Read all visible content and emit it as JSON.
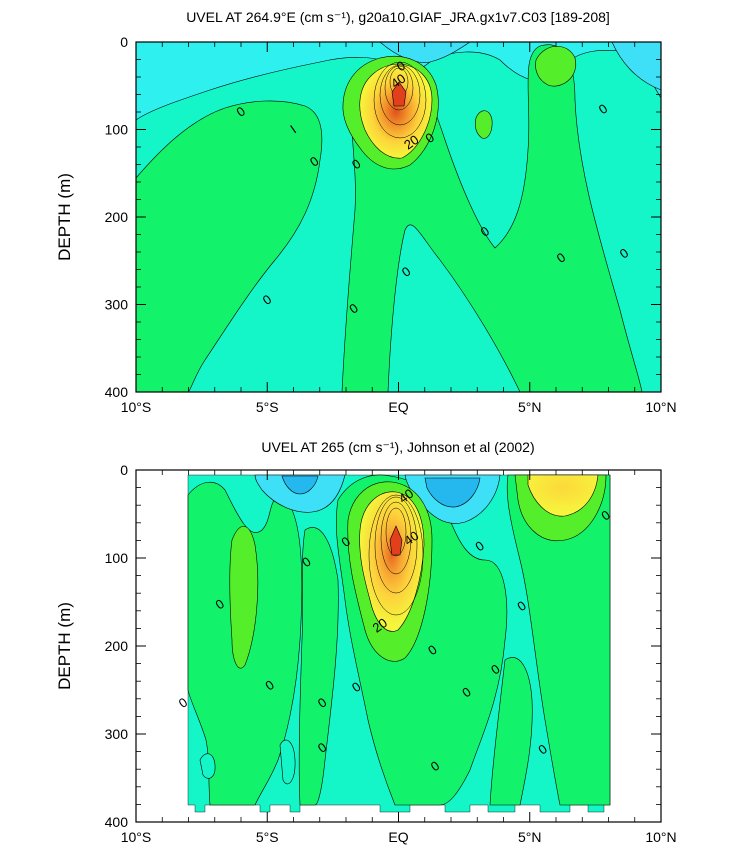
{
  "chart_data": [
    {
      "type": "heatmap",
      "title": "UVEL AT 264.9°E (cm s⁻¹), g20a10.GIAF_JRA.gx1v7.C03 [189-208]",
      "ylabel": "DEPTH (m)",
      "xlabel": "",
      "x_range": [
        -10,
        10
      ],
      "y_range": [
        0,
        400
      ],
      "x_ticks": [
        {
          "value": -10,
          "label": "10°S"
        },
        {
          "value": -5,
          "label": "5°S"
        },
        {
          "value": 0,
          "label": "EQ"
        },
        {
          "value": 5,
          "label": "5°N"
        },
        {
          "value": 10,
          "label": "10°N"
        }
      ],
      "y_ticks": [
        {
          "value": 0,
          "label": "0"
        },
        {
          "value": 100,
          "label": "100"
        },
        {
          "value": 200,
          "label": "200"
        },
        {
          "value": 300,
          "label": "300"
        },
        {
          "value": 400,
          "label": "400"
        }
      ],
      "contour_labels": [
        {
          "text": "0",
          "x": -6.0,
          "y": 80
        },
        {
          "text": "0",
          "x": -3.2,
          "y": 137
        },
        {
          "text": "0",
          "x": -1.6,
          "y": 140
        },
        {
          "text": "0",
          "x": -5.0,
          "y": 295
        },
        {
          "text": "0",
          "x": -1.7,
          "y": 305
        },
        {
          "text": "0",
          "x": 0.3,
          "y": 263
        },
        {
          "text": "0",
          "x": 0.1,
          "y": 28
        },
        {
          "text": "0",
          "x": 1.2,
          "y": 110
        },
        {
          "text": "0",
          "x": 3.3,
          "y": 217
        },
        {
          "text": "0",
          "x": 6.2,
          "y": 247
        },
        {
          "text": "0",
          "x": 7.8,
          "y": 77
        },
        {
          "text": "0",
          "x": 8.6,
          "y": 242
        },
        {
          "text": "40",
          "x": 0.0,
          "y": 45
        },
        {
          "text": "20",
          "x": 0.5,
          "y": 115
        },
        {
          "text": "I",
          "x": -4.0,
          "y": 100
        }
      ]
    },
    {
      "type": "heatmap",
      "title": "UVEL AT 265 (cm s⁻¹), Johnson et al (2002)",
      "ylabel": "DEPTH (m)",
      "xlabel": "",
      "x_range": [
        -10,
        10
      ],
      "y_range": [
        0,
        400
      ],
      "x_ticks": [
        {
          "value": -10,
          "label": "10°S"
        },
        {
          "value": -5,
          "label": "5°S"
        },
        {
          "value": 0,
          "label": "EQ"
        },
        {
          "value": 5,
          "label": "5°N"
        },
        {
          "value": 10,
          "label": "10°N"
        }
      ],
      "y_ticks": [
        {
          "value": 0,
          "label": "0"
        },
        {
          "value": 100,
          "label": "100"
        },
        {
          "value": 200,
          "label": "200"
        },
        {
          "value": 300,
          "label": "300"
        },
        {
          "value": 400,
          "label": "400"
        }
      ],
      "contour_labels": [
        {
          "text": "0",
          "x": -8.2,
          "y": 265
        },
        {
          "text": "0",
          "x": -6.8,
          "y": 153
        },
        {
          "text": "0",
          "x": -4.9,
          "y": 245
        },
        {
          "text": "0",
          "x": -3.5,
          "y": 105
        },
        {
          "text": "0",
          "x": -2.9,
          "y": 265
        },
        {
          "text": "0",
          "x": -2.9,
          "y": 316
        },
        {
          "text": "0",
          "x": -2.0,
          "y": 82
        },
        {
          "text": "0",
          "x": -1.6,
          "y": 247
        },
        {
          "text": "0",
          "x": 1.3,
          "y": 205
        },
        {
          "text": "0",
          "x": 1.4,
          "y": 337
        },
        {
          "text": "0",
          "x": 2.6,
          "y": 253
        },
        {
          "text": "0",
          "x": 3.1,
          "y": 87
        },
        {
          "text": "0",
          "x": 3.7,
          "y": 227
        },
        {
          "text": "0",
          "x": 4.7,
          "y": 155
        },
        {
          "text": "0",
          "x": 5.5,
          "y": 318
        },
        {
          "text": "0",
          "x": 7.9,
          "y": 52
        },
        {
          "text": "40",
          "x": 0.3,
          "y": 30
        },
        {
          "text": "40",
          "x": 0.5,
          "y": 78
        },
        {
          "text": "20",
          "x": -0.7,
          "y": 177
        }
      ]
    }
  ]
}
